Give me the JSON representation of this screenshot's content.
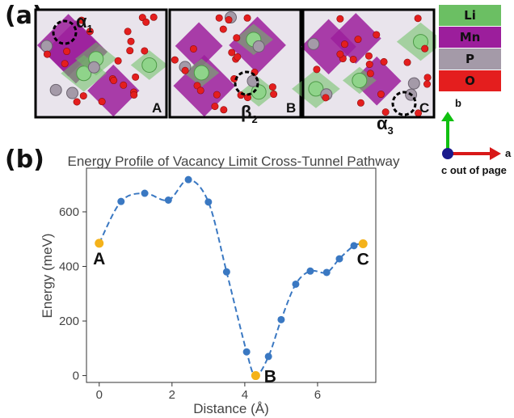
{
  "panel_a": {
    "tag": "(a)",
    "subpanels": [
      {
        "corner": "A",
        "site_main": "α",
        "site_sub": "1"
      },
      {
        "corner": "B",
        "site_main": "β",
        "site_sub": "2"
      },
      {
        "corner": "C",
        "site_main": "α",
        "site_sub": "3"
      }
    ]
  },
  "legend": {
    "items": [
      {
        "label": "Li",
        "color": "#6bbf63"
      },
      {
        "label": "Mn",
        "color": "#9c1e9c"
      },
      {
        "label": "P",
        "color": "#a49aa8"
      },
      {
        "label": "O",
        "color": "#e41e1e"
      }
    ]
  },
  "axes_indicator": {
    "b": "b",
    "a": "a",
    "c": "c out of page"
  },
  "panel_b": {
    "tag": "(b)"
  },
  "chart_data": {
    "type": "line",
    "title": "Energy Profile of Vacancy Limit Cross-Tunnel Pathway",
    "xlabel": "Distance (Å)",
    "ylabel": "Energy (meV)",
    "xlim": [
      -0.35,
      7.6
    ],
    "ylim": [
      -25,
      760
    ],
    "xticks": [
      0,
      2,
      4,
      6
    ],
    "yticks": [
      0,
      200,
      400,
      600
    ],
    "grid": false,
    "series": [
      {
        "color": "#3a78c2",
        "x": [
          0,
          0.6,
          1.25,
          1.9,
          2.45,
          3.0,
          3.5,
          4.05,
          4.3,
          4.65,
          5.0,
          5.4,
          5.8,
          6.25,
          6.6,
          7.0,
          7.25
        ],
        "y": [
          485,
          638,
          668,
          643,
          718,
          636,
          380,
          87,
          0,
          70,
          205,
          335,
          383,
          378,
          428,
          476,
          483
        ]
      }
    ],
    "endpoints": [
      {
        "label": "A",
        "x": 0,
        "y": 485,
        "color": "#f4b21a"
      },
      {
        "label": "B",
        "x": 4.3,
        "y": 0,
        "color": "#f4b21a"
      },
      {
        "label": "C",
        "x": 7.25,
        "y": 483,
        "color": "#f4b21a"
      }
    ]
  }
}
